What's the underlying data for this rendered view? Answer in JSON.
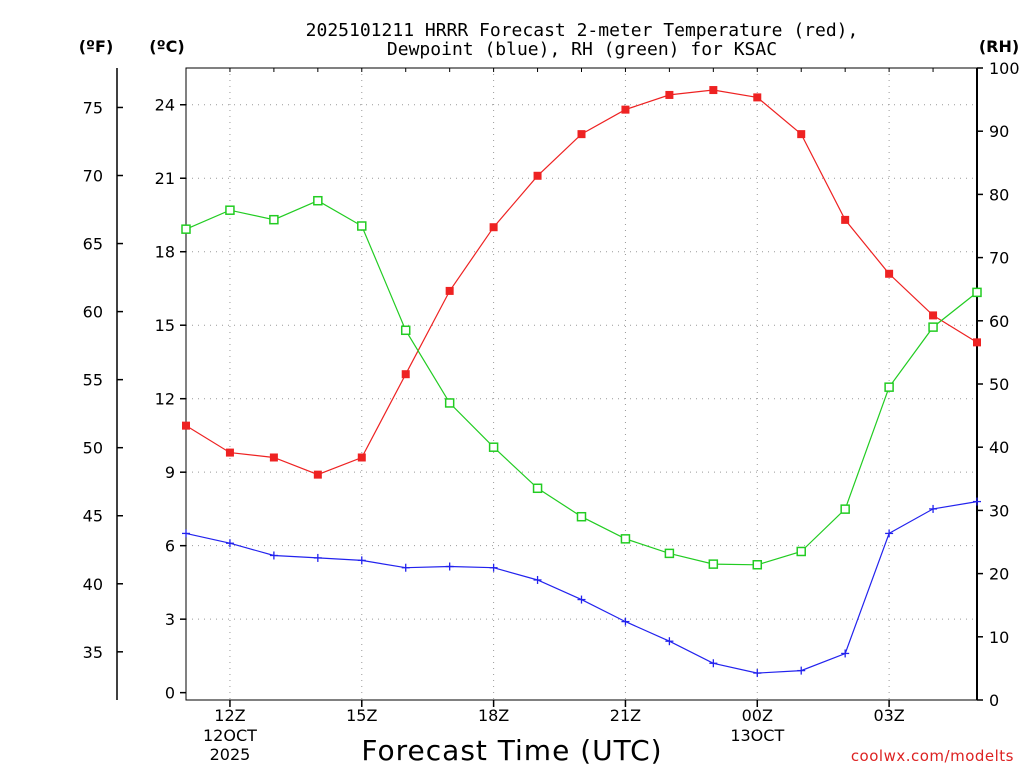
{
  "chart_data": {
    "type": "line",
    "title": [
      "2025101211 HRRR Forecast 2-meter Temperature (red),",
      "Dewpoint (blue), RH (green) for KSAC"
    ],
    "xlabel": "Forecast Time (UTC)",
    "watermark": "coolwx.com/modelts",
    "units": {
      "fahrenheit": "(ºF)",
      "celsius": "(ºC)",
      "rh": "(RH)"
    },
    "x_hours": [
      11,
      12,
      13,
      14,
      15,
      16,
      17,
      18,
      19,
      20,
      21,
      22,
      23,
      24,
      25,
      26,
      27,
      28,
      29
    ],
    "xlim": [
      11,
      29
    ],
    "x_ticks": [
      {
        "hour": 12,
        "label": "12Z",
        "date1": "12OCT",
        "date2": "2025"
      },
      {
        "hour": 15,
        "label": "15Z"
      },
      {
        "hour": 18,
        "label": "18Z"
      },
      {
        "hour": 21,
        "label": "21Z"
      },
      {
        "hour": 24,
        "label": "00Z",
        "date1": "13OCT"
      },
      {
        "hour": 27,
        "label": "03Z"
      }
    ],
    "ylim_celsius": [
      -0.3,
      25.5
    ],
    "ylim_rh": [
      0,
      100
    ],
    "y_ticks_celsius": [
      0,
      3,
      6,
      9,
      12,
      15,
      18,
      21,
      24
    ],
    "y_ticks_fahrenheit": [
      35,
      40,
      45,
      50,
      55,
      60,
      65,
      70,
      75
    ],
    "y_ticks_rh": [
      0,
      10,
      20,
      30,
      40,
      50,
      60,
      70,
      80,
      90,
      100
    ],
    "series": [
      {
        "name": "2-meter Temperature",
        "unit": "°C",
        "color": "#ee2222",
        "marker": "filled-square",
        "values": [
          10.9,
          9.8,
          9.6,
          8.9,
          9.6,
          13.0,
          16.4,
          19.0,
          21.1,
          22.8,
          23.8,
          24.4,
          24.6,
          24.3,
          22.8,
          19.3,
          17.1,
          15.4,
          14.3
        ]
      },
      {
        "name": "Dewpoint",
        "unit": "°C",
        "color": "#2222ee",
        "marker": "plus",
        "values": [
          6.5,
          6.1,
          5.6,
          5.5,
          5.4,
          5.1,
          5.15,
          5.1,
          4.6,
          3.8,
          2.9,
          2.1,
          1.2,
          0.8,
          0.9,
          1.6,
          6.5,
          7.5,
          7.8
        ]
      },
      {
        "name": "RH",
        "unit": "%",
        "color": "#22cc22",
        "marker": "open-square",
        "values": [
          74.5,
          77.5,
          76,
          79,
          75,
          58.5,
          47,
          40,
          33.5,
          29,
          25.5,
          23.2,
          21.5,
          21.4,
          23.5,
          30.2,
          49.5,
          59,
          64.5
        ]
      }
    ]
  }
}
